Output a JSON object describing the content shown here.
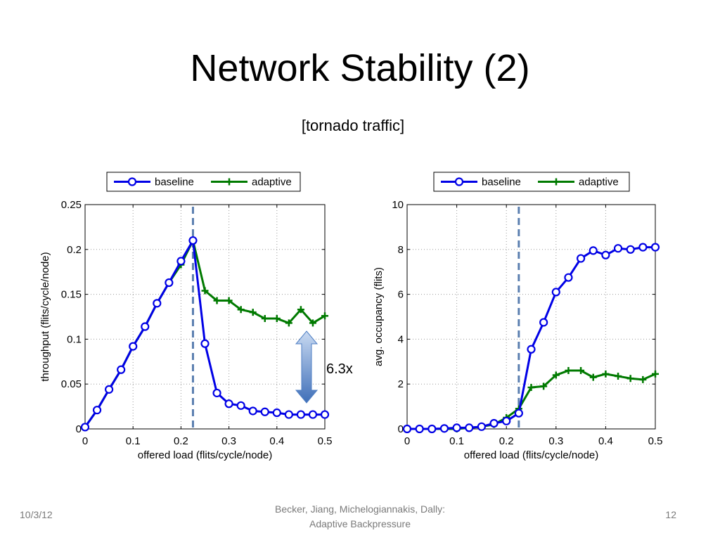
{
  "slide": {
    "title": "Network Stability (2)",
    "subtitle": "[tornado traffic]",
    "footer_date": "10/3/12",
    "footer_authors_line1": "Becker, Jiang, Michelogiannakis, Dally:",
    "footer_authors_line2": "Adaptive Backpressure",
    "page_number": "12",
    "annotation": "6.3x"
  },
  "colors": {
    "baseline": "#0000e6",
    "adaptive": "#007a00",
    "dashed": "#5b7fb0",
    "arrow": "#4f7fc4"
  },
  "chart_data": [
    {
      "type": "line",
      "xlabel": "offered load (flits/cycle/node)",
      "ylabel": "throughput (flits/cycle/node)",
      "xlim": [
        0,
        0.5
      ],
      "ylim": [
        0,
        0.25
      ],
      "xticks": [
        0,
        0.1,
        0.2,
        0.3,
        0.4,
        0.5
      ],
      "yticks": [
        0,
        0.05,
        0.1,
        0.15,
        0.2,
        0.25
      ],
      "xtick_labels": [
        "0",
        "0.1",
        "0.2",
        "0.3",
        "0.4",
        "0.5"
      ],
      "ytick_labels": [
        "0",
        "0.05",
        "0.1",
        "0.15",
        "0.2",
        "0.25"
      ],
      "grid": true,
      "legend": "above",
      "vline": 0.225,
      "x": [
        0.0,
        0.025,
        0.05,
        0.075,
        0.1,
        0.125,
        0.15,
        0.175,
        0.2,
        0.225,
        0.25,
        0.275,
        0.3,
        0.325,
        0.35,
        0.375,
        0.4,
        0.425,
        0.45,
        0.475,
        0.5
      ],
      "series": [
        {
          "name": "baseline",
          "marker": "circle",
          "values": [
            0.002,
            0.021,
            0.044,
            0.066,
            0.092,
            0.114,
            0.14,
            0.163,
            0.187,
            0.21,
            0.095,
            0.04,
            0.028,
            0.026,
            0.02,
            0.019,
            0.018,
            0.016,
            0.016,
            0.016,
            0.016
          ]
        },
        {
          "name": "adaptive",
          "marker": "plus",
          "values": [
            0.002,
            0.021,
            0.044,
            0.066,
            0.092,
            0.114,
            0.14,
            0.163,
            0.183,
            0.21,
            0.154,
            0.143,
            0.143,
            0.133,
            0.13,
            0.123,
            0.123,
            0.118,
            0.133,
            0.118,
            0.126
          ]
        }
      ]
    },
    {
      "type": "line",
      "xlabel": "offered load (flits/cycle/node)",
      "ylabel": "avg. occupancy (flits)",
      "xlim": [
        0,
        0.5
      ],
      "ylim": [
        0,
        10
      ],
      "xticks": [
        0,
        0.1,
        0.2,
        0.3,
        0.4,
        0.5
      ],
      "yticks": [
        0,
        2,
        4,
        6,
        8,
        10
      ],
      "xtick_labels": [
        "0",
        "0.1",
        "0.2",
        "0.3",
        "0.4",
        "0.5"
      ],
      "ytick_labels": [
        "0",
        "2",
        "4",
        "6",
        "8",
        "10"
      ],
      "grid": true,
      "legend": "above",
      "vline": 0.225,
      "x": [
        0.0,
        0.025,
        0.05,
        0.075,
        0.1,
        0.125,
        0.15,
        0.175,
        0.2,
        0.225,
        0.25,
        0.275,
        0.3,
        0.325,
        0.35,
        0.375,
        0.4,
        0.425,
        0.45,
        0.475,
        0.5
      ],
      "series": [
        {
          "name": "baseline",
          "marker": "circle",
          "values": [
            0.0,
            0.0,
            0.0,
            0.02,
            0.05,
            0.05,
            0.1,
            0.25,
            0.35,
            0.7,
            3.55,
            4.75,
            6.1,
            6.75,
            7.6,
            7.95,
            7.75,
            8.05,
            8.0,
            8.1,
            8.1
          ]
        },
        {
          "name": "adaptive",
          "marker": "plus",
          "values": [
            0.0,
            0.0,
            0.0,
            0.0,
            0.0,
            0.05,
            0.1,
            0.2,
            0.5,
            0.9,
            1.85,
            1.9,
            2.4,
            2.6,
            2.6,
            2.3,
            2.45,
            2.35,
            2.25,
            2.2,
            2.45
          ]
        }
      ]
    }
  ]
}
